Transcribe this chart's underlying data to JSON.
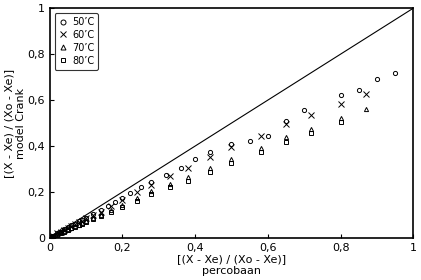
{
  "title": "",
  "xlabel_line1": "[(X - Xe) / (Xo - Xe)]",
  "xlabel_line2": "percobaan",
  "ylabel_line1": "[(X - Xe) / (Xo - Xe)]",
  "ylabel_line2": "model Crank",
  "xlim": [
    0,
    1
  ],
  "ylim": [
    0,
    1
  ],
  "xticks": [
    0,
    0.2,
    0.4,
    0.6,
    0.8,
    1
  ],
  "yticks": [
    0,
    0.2,
    0.4,
    0.6,
    0.8,
    1
  ],
  "diagonal_line": [
    [
      0,
      1
    ],
    [
      0,
      1
    ]
  ],
  "series": [
    {
      "label": "50’C",
      "marker": "o",
      "markersize": 3,
      "color": "#000000",
      "fillstyle": "none",
      "x": [
        0.005,
        0.01,
        0.015,
        0.02,
        0.025,
        0.03,
        0.035,
        0.04,
        0.05,
        0.06,
        0.07,
        0.08,
        0.09,
        0.1,
        0.12,
        0.14,
        0.16,
        0.18,
        0.2,
        0.22,
        0.25,
        0.28,
        0.32,
        0.36,
        0.4,
        0.44,
        0.5,
        0.55,
        0.6,
        0.65,
        0.7,
        0.8,
        0.85,
        0.9,
        0.95
      ],
      "y": [
        0.005,
        0.01,
        0.013,
        0.02,
        0.025,
        0.028,
        0.033,
        0.038,
        0.048,
        0.057,
        0.063,
        0.072,
        0.079,
        0.088,
        0.105,
        0.12,
        0.14,
        0.155,
        0.175,
        0.195,
        0.22,
        0.245,
        0.275,
        0.305,
        0.345,
        0.375,
        0.41,
        0.42,
        0.445,
        0.51,
        0.555,
        0.62,
        0.645,
        0.69,
        0.72
      ]
    },
    {
      "label": "60’C",
      "marker": "x",
      "markersize": 4,
      "color": "#000000",
      "fillstyle": "full",
      "x": [
        0.005,
        0.01,
        0.02,
        0.03,
        0.04,
        0.05,
        0.06,
        0.07,
        0.08,
        0.09,
        0.1,
        0.12,
        0.14,
        0.17,
        0.2,
        0.24,
        0.28,
        0.33,
        0.38,
        0.44,
        0.5,
        0.58,
        0.65,
        0.72,
        0.8,
        0.87
      ],
      "y": [
        0.005,
        0.01,
        0.02,
        0.028,
        0.036,
        0.045,
        0.053,
        0.061,
        0.068,
        0.076,
        0.085,
        0.099,
        0.115,
        0.14,
        0.165,
        0.198,
        0.232,
        0.268,
        0.305,
        0.352,
        0.395,
        0.445,
        0.495,
        0.535,
        0.585,
        0.625
      ]
    },
    {
      "label": "70’C",
      "marker": "^",
      "markersize": 3,
      "color": "#000000",
      "fillstyle": "none",
      "x": [
        0.005,
        0.01,
        0.02,
        0.03,
        0.04,
        0.05,
        0.06,
        0.07,
        0.08,
        0.09,
        0.1,
        0.12,
        0.14,
        0.17,
        0.2,
        0.24,
        0.28,
        0.33,
        0.38,
        0.44,
        0.5,
        0.58,
        0.65,
        0.72,
        0.8,
        0.87
      ],
      "y": [
        0.005,
        0.008,
        0.016,
        0.024,
        0.03,
        0.038,
        0.045,
        0.052,
        0.058,
        0.065,
        0.073,
        0.087,
        0.101,
        0.123,
        0.145,
        0.173,
        0.203,
        0.234,
        0.265,
        0.305,
        0.345,
        0.39,
        0.44,
        0.475,
        0.52,
        0.56
      ]
    },
    {
      "label": "80’C",
      "marker": "s",
      "markersize": 3,
      "color": "#000000",
      "fillstyle": "none",
      "x": [
        0.005,
        0.01,
        0.02,
        0.03,
        0.04,
        0.05,
        0.06,
        0.07,
        0.08,
        0.09,
        0.1,
        0.12,
        0.14,
        0.17,
        0.2,
        0.24,
        0.28,
        0.33,
        0.38,
        0.44,
        0.5,
        0.58,
        0.65,
        0.72,
        0.8
      ],
      "y": [
        0.004,
        0.008,
        0.015,
        0.022,
        0.028,
        0.035,
        0.042,
        0.048,
        0.055,
        0.062,
        0.069,
        0.082,
        0.095,
        0.115,
        0.136,
        0.163,
        0.19,
        0.22,
        0.25,
        0.288,
        0.328,
        0.372,
        0.418,
        0.455,
        0.505
      ]
    }
  ],
  "legend_loc": "upper left",
  "legend_fontsize": 7,
  "axis_fontsize": 8,
  "tick_fontsize": 8,
  "background_color": "#ffffff"
}
